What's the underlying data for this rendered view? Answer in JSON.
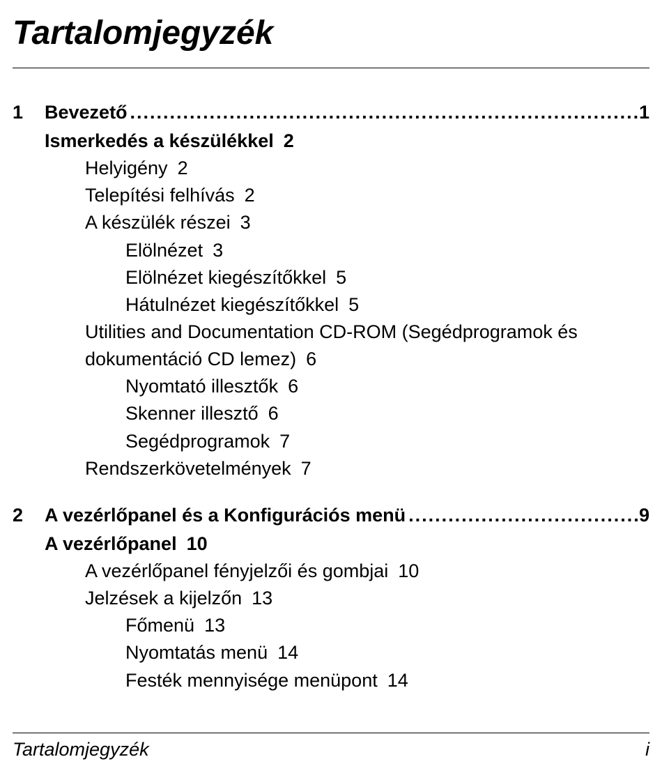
{
  "title": "Tartalomjegyzék",
  "leader": "...........................................................................................................",
  "sections": [
    {
      "num": "1",
      "label": "Bevezető",
      "page": "1",
      "children_l2": [
        {
          "label": "Ismerkedés a készülékkel",
          "page": "2",
          "children_l3": [
            {
              "label": "Helyigény",
              "page": "2"
            },
            {
              "label": "Telepítési felhívás",
              "page": "2"
            },
            {
              "label": "A készülék részei",
              "page": "3",
              "children_l4": [
                {
                  "label": "Elölnézet",
                  "page": "3"
                },
                {
                  "label": "Elölnézet kiegészítőkkel",
                  "page": "5"
                },
                {
                  "label": "Hátulnézet kiegészítőkkel",
                  "page": "5"
                }
              ]
            },
            {
              "label": "Utilities and Documentation CD-ROM (Segédprogramok és dokumentáció CD lemez)",
              "page": "6",
              "children_l4": [
                {
                  "label": "Nyomtató illesztők",
                  "page": "6"
                },
                {
                  "label": "Skenner illesztő",
                  "page": "6"
                },
                {
                  "label": "Segédprogramok",
                  "page": "7"
                }
              ]
            },
            {
              "label": "Rendszerkövetelmények",
              "page": "7"
            }
          ]
        }
      ]
    },
    {
      "num": "2",
      "label": "A vezérlőpanel és a Konfigurációs menü",
      "page": "9",
      "children_l2": [
        {
          "label": "A vezérlőpanel",
          "page": "10",
          "children_l3": [
            {
              "label": "A vezérlőpanel fényjelzői és gombjai",
              "page": "10"
            },
            {
              "label": "Jelzések a kijelzőn",
              "page": "13",
              "children_l4": [
                {
                  "label": "Főmenü",
                  "page": "13"
                },
                {
                  "label": "Nyomtatás menü",
                  "page": "14"
                },
                {
                  "label": "Festék mennyisége menüpont",
                  "page": "14"
                }
              ]
            }
          ]
        }
      ]
    }
  ],
  "footer": {
    "left": "Tartalomjegyzék",
    "right": "i"
  }
}
